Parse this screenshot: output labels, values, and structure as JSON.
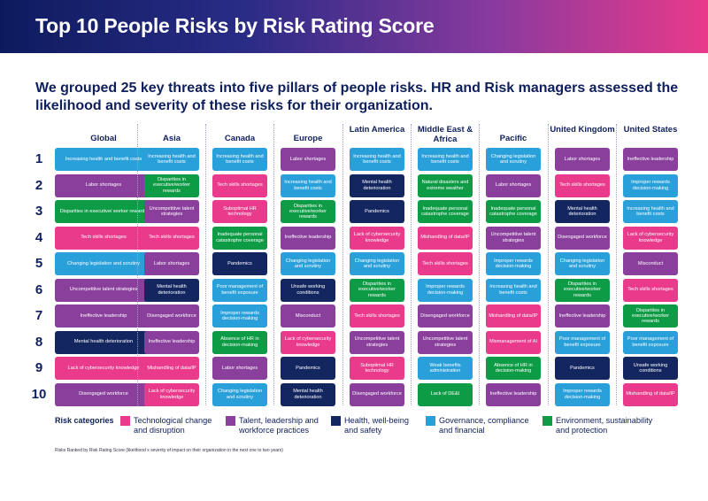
{
  "header": {
    "title": "Top 10 People Risks by Risk Rating Score"
  },
  "subtitle": "We grouped 25 key threats into five pillars of people risks. HR and Risk managers assessed the likelihood and severity of these risks for their organization.",
  "ranks": [
    "1",
    "2",
    "3",
    "4",
    "5",
    "6",
    "7",
    "8",
    "9",
    "10"
  ],
  "columns": [
    {
      "title": "Global",
      "items": [
        {
          "label": "Increasing health and benefit costs",
          "category": "gov"
        },
        {
          "label": "Labor shortages",
          "category": "talent"
        },
        {
          "label": "Disparities in executive/ worker rewards",
          "category": "env"
        },
        {
          "label": "Tech skills shortages",
          "category": "tech"
        },
        {
          "label": "Changing legislation and scrutiny",
          "category": "gov"
        },
        {
          "label": "Uncompetitive talent strategies",
          "category": "talent"
        },
        {
          "label": "Ineffective leadership",
          "category": "talent"
        },
        {
          "label": "Mental health deterioration",
          "category": "health"
        },
        {
          "label": "Lack of cybersecurity knowledge",
          "category": "tech"
        },
        {
          "label": "Disengaged workforce",
          "category": "talent"
        }
      ]
    },
    {
      "title": "Asia",
      "items": [
        {
          "label": "Increasing health and benefit costs",
          "category": "gov"
        },
        {
          "label": "Disparities in executive/worker rewards",
          "category": "env"
        },
        {
          "label": "Uncompetitive talent strategies",
          "category": "talent"
        },
        {
          "label": "Tech skills shortages",
          "category": "tech"
        },
        {
          "label": "Labor shortages",
          "category": "talent"
        },
        {
          "label": "Mental health deterioration",
          "category": "health"
        },
        {
          "label": "Disengaged workforce",
          "category": "talent"
        },
        {
          "label": "Ineffective leadership",
          "category": "talent"
        },
        {
          "label": "Mishandling of data/IP",
          "category": "tech"
        },
        {
          "label": "Lack of cybersecurity knowledge",
          "category": "tech"
        }
      ]
    },
    {
      "title": "Canada",
      "items": [
        {
          "label": "Increasing health and benefit costs",
          "category": "gov"
        },
        {
          "label": "Tech skills shortages",
          "category": "tech"
        },
        {
          "label": "Suboptimal HR technology",
          "category": "tech"
        },
        {
          "label": "Inadequate personal catastrophe coverage",
          "category": "env"
        },
        {
          "label": "Pandemics",
          "category": "health"
        },
        {
          "label": "Poor management of benefit exposure",
          "category": "gov"
        },
        {
          "label": "Improper rewards decision-making",
          "category": "gov"
        },
        {
          "label": "Absence of HR in decision-making",
          "category": "env"
        },
        {
          "label": "Labor shortages",
          "category": "talent"
        },
        {
          "label": "Changing legislation and scrutiny",
          "category": "gov"
        }
      ]
    },
    {
      "title": "Europe",
      "items": [
        {
          "label": "Labor shortages",
          "category": "talent"
        },
        {
          "label": "Increasing health and benefit costs",
          "category": "gov"
        },
        {
          "label": "Disparities in executive/worker rewards",
          "category": "env"
        },
        {
          "label": "Ineffective leadership",
          "category": "talent"
        },
        {
          "label": "Changing legislation and scrutiny",
          "category": "gov"
        },
        {
          "label": "Unsafe working conditions",
          "category": "health"
        },
        {
          "label": "Misconduct",
          "category": "talent"
        },
        {
          "label": "Lack of cybersecurity knowledge",
          "category": "tech"
        },
        {
          "label": "Pandemics",
          "category": "health"
        },
        {
          "label": "Mental health deterioration",
          "category": "health"
        }
      ]
    },
    {
      "title": "Latin America",
      "items": [
        {
          "label": "Increasing health and benefit costs",
          "category": "gov"
        },
        {
          "label": "Mental health deterioration",
          "category": "health"
        },
        {
          "label": "Pandemics",
          "category": "health"
        },
        {
          "label": "Lack of cybersecurity knowledge",
          "category": "tech"
        },
        {
          "label": "Changing legislation and scrutiny",
          "category": "gov"
        },
        {
          "label": "Disparities in executive/worker rewards",
          "category": "env"
        },
        {
          "label": "Tech skills shortages",
          "category": "tech"
        },
        {
          "label": "Uncompetitive talent strategies",
          "category": "talent"
        },
        {
          "label": "Suboptimal HR technology",
          "category": "tech"
        },
        {
          "label": "Disengaged workforce",
          "category": "talent"
        }
      ]
    },
    {
      "title": "Middle East & Africa",
      "items": [
        {
          "label": "Increasing health and benefit costs",
          "category": "gov"
        },
        {
          "label": "Natural disasters and extreme weather",
          "category": "env"
        },
        {
          "label": "Inadequate personal catastrophe coverage",
          "category": "env"
        },
        {
          "label": "Mishandling of data/IP",
          "category": "tech"
        },
        {
          "label": "Tech skills shortages",
          "category": "tech"
        },
        {
          "label": "Improper rewards decision-making",
          "category": "gov"
        },
        {
          "label": "Disengaged workforce",
          "category": "talent"
        },
        {
          "label": "Uncompetitive talent strategies",
          "category": "talent"
        },
        {
          "label": "Weak benefits administration",
          "category": "gov"
        },
        {
          "label": "Lack of DE&I",
          "category": "env"
        }
      ]
    },
    {
      "title": "Pacific",
      "items": [
        {
          "label": "Changing legislation and scrutiny",
          "category": "gov"
        },
        {
          "label": "Labor shortages",
          "category": "talent"
        },
        {
          "label": "Inadequate personal catastrophe coverage",
          "category": "env"
        },
        {
          "label": "Uncompetitive talent strategies",
          "category": "talent"
        },
        {
          "label": "Improper rewards decision-making",
          "category": "gov"
        },
        {
          "label": "Increasing health and benefit costs",
          "category": "gov"
        },
        {
          "label": "Mishandling of data/IP",
          "category": "tech"
        },
        {
          "label": "Mismanagement of AI",
          "category": "tech"
        },
        {
          "label": "Absence of HR in decision-making",
          "category": "env"
        },
        {
          "label": "Ineffective leadership",
          "category": "talent"
        }
      ]
    },
    {
      "title": "United Kingdom",
      "items": [
        {
          "label": "Labor shortages",
          "category": "talent"
        },
        {
          "label": "Tech skills shortages",
          "category": "tech"
        },
        {
          "label": "Mental health deterioration",
          "category": "health"
        },
        {
          "label": "Disengaged workforce",
          "category": "talent"
        },
        {
          "label": "Changing legislation and scrutiny",
          "category": "gov"
        },
        {
          "label": "Disparities in executive/worker rewards",
          "category": "env"
        },
        {
          "label": "Ineffective leadership",
          "category": "talent"
        },
        {
          "label": "Poor management of benefit exposure",
          "category": "gov"
        },
        {
          "label": "Pandemics",
          "category": "health"
        },
        {
          "label": "Improper rewards decision-making",
          "category": "gov"
        }
      ]
    },
    {
      "title": "United States",
      "items": [
        {
          "label": "Ineffective leadership",
          "category": "talent"
        },
        {
          "label": "Improper rewards decision-making",
          "category": "gov"
        },
        {
          "label": "Increasing health and benefit costs",
          "category": "gov"
        },
        {
          "label": "Lack of cybersecurity knowledge",
          "category": "tech"
        },
        {
          "label": "Misconduct",
          "category": "talent"
        },
        {
          "label": "Tech skills shortages",
          "category": "tech"
        },
        {
          "label": "Disparities in executive/worker rewards",
          "category": "env"
        },
        {
          "label": "Poor management of benefit exposure",
          "category": "gov"
        },
        {
          "label": "Unsafe working conditions",
          "category": "health"
        },
        {
          "label": "Mishandling of data/IP",
          "category": "tech"
        }
      ]
    }
  ],
  "legend": {
    "title": "Risk categories",
    "items": [
      {
        "key": "tech",
        "label": "Technological change and disruption",
        "color": "#ea3a8c"
      },
      {
        "key": "talent",
        "label": "Talent, leadership and workforce practices",
        "color": "#8a3f9c"
      },
      {
        "key": "health",
        "label": "Health, well-being and safety",
        "color": "#13265f"
      },
      {
        "key": "gov",
        "label": "Governance, compliance and financial",
        "color": "#2aa0db"
      },
      {
        "key": "env",
        "label": "Environment, sustainability and protection",
        "color": "#0e9b45"
      }
    ]
  },
  "footnote": "Risks Ranked by Risk Rating Score (likelihood x severity of impact on their organization in the next one to two years)"
}
